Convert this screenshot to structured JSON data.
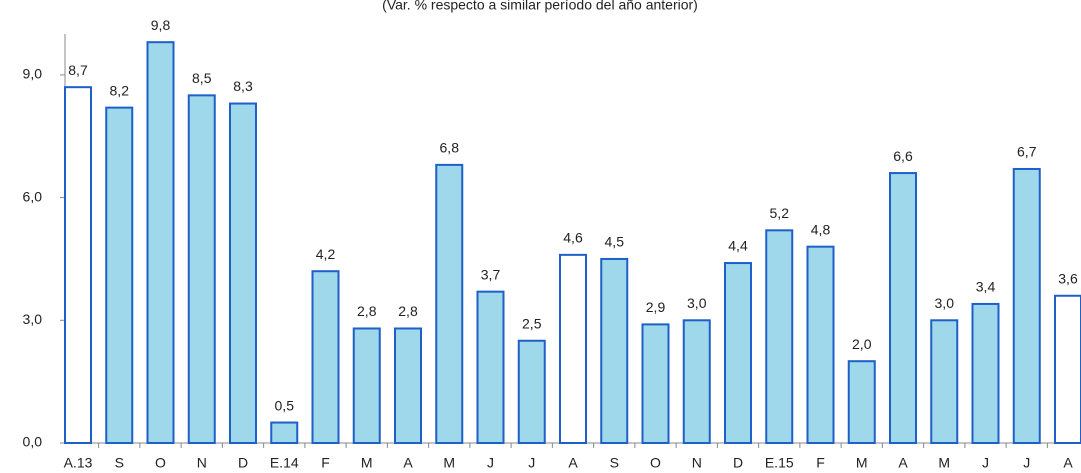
{
  "chart_data": {
    "type": "bar",
    "title": "(Var. % respecto a similar período del año anterior)",
    "categories": [
      "A.13",
      "S",
      "O",
      "N",
      "D",
      "E.14",
      "F",
      "M",
      "A",
      "M",
      "J",
      "J",
      "A",
      "S",
      "O",
      "N",
      "D",
      "E.15",
      "F",
      "M",
      "A",
      "M",
      "J",
      "J",
      "A"
    ],
    "values": [
      8.7,
      8.2,
      9.8,
      8.5,
      8.3,
      0.5,
      4.2,
      2.8,
      2.8,
      6.8,
      3.7,
      2.5,
      4.6,
      4.5,
      2.9,
      3.0,
      4.4,
      5.2,
      4.8,
      2.0,
      6.6,
      3.0,
      3.4,
      6.7,
      3.6
    ],
    "value_labels": [
      "8,7",
      "8,2",
      "9,8",
      "8,5",
      "8,3",
      "0,5",
      "4,2",
      "2,8",
      "2,8",
      "6,8",
      "3,7",
      "2,5",
      "4,6",
      "4,5",
      "2,9",
      "3,0",
      "4,4",
      "5,2",
      "4,8",
      "2,0",
      "6,6",
      "3,0",
      "3,4",
      "6,7",
      "3,6"
    ],
    "colors": [
      "#ffffff",
      "#9ed8ea",
      "#9ed8ea",
      "#9ed8ea",
      "#9ed8ea",
      "#9ed8ea",
      "#9ed8ea",
      "#9ed8ea",
      "#9ed8ea",
      "#9ed8ea",
      "#9ed8ea",
      "#9ed8ea",
      "#ffffff",
      "#9ed8ea",
      "#9ed8ea",
      "#9ed8ea",
      "#9ed8ea",
      "#9ed8ea",
      "#9ed8ea",
      "#9ed8ea",
      "#9ed8ea",
      "#9ed8ea",
      "#9ed8ea",
      "#9ed8ea",
      "#ffffff"
    ],
    "edge_color": "#1f5fc8",
    "ylim": [
      0,
      10
    ],
    "yticks": [
      {
        "value": 0,
        "label": "0,0"
      },
      {
        "value": 3,
        "label": "3,0"
      },
      {
        "value": 6,
        "label": "6,0"
      },
      {
        "value": 9,
        "label": "9,0"
      }
    ],
    "grid": false
  }
}
